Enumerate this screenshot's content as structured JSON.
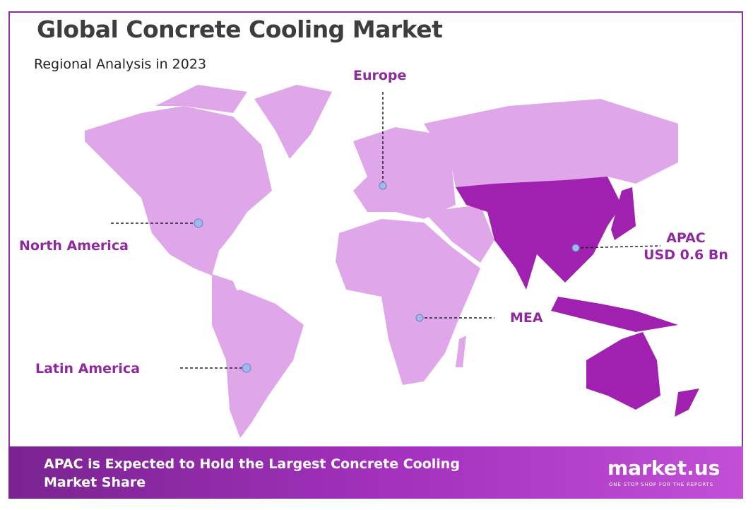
{
  "header": {
    "title": "Global Concrete Cooling Market",
    "subtitle": "Regional Analysis in 2023"
  },
  "regions": [
    {
      "label": "Europe"
    },
    {
      "label": "North America"
    },
    {
      "label": "APAC",
      "value_label": "USD 0.6 Bn"
    },
    {
      "label": "MEA"
    },
    {
      "label": "Latin America"
    }
  ],
  "footer": {
    "text": "APAC is Expected to Hold the Largest Concrete Cooling Market Share",
    "logo": "market.us",
    "tagline": "ONE STOP SHOP FOR THE REPORTS"
  }
}
